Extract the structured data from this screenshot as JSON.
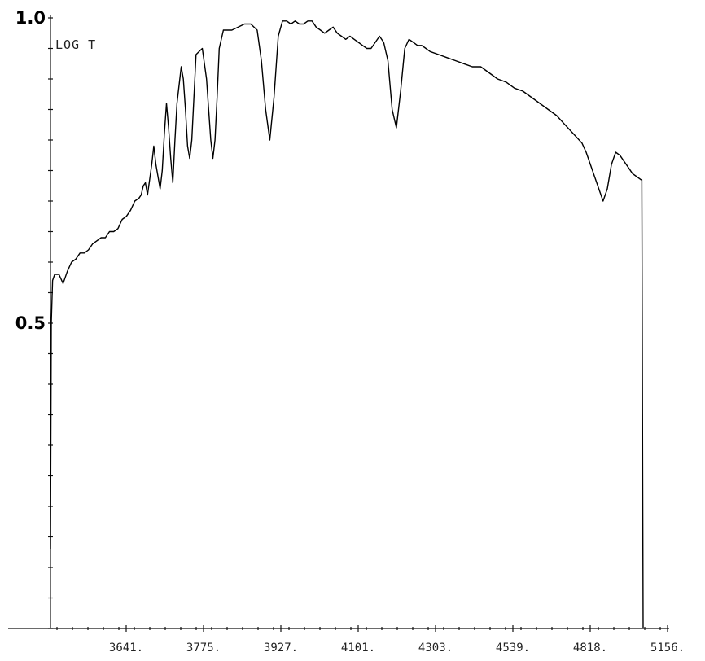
{
  "chart_data": {
    "type": "line",
    "title": "",
    "ylabel": "LOG T",
    "xlabel": "",
    "xlim": [
      3500,
      5156
    ],
    "ylim": [
      0.0,
      1.0
    ],
    "y_major_ticks": [
      {
        "value": 1.0,
        "label": "1.0"
      },
      {
        "value": 0.5,
        "label": "0.5"
      }
    ],
    "x_ticks": [
      {
        "value": 3641,
        "label": "3641."
      },
      {
        "value": 3775,
        "label": "3775."
      },
      {
        "value": 3927,
        "label": "3927."
      },
      {
        "value": 4101,
        "label": "4101."
      },
      {
        "value": 4303,
        "label": "4303."
      },
      {
        "value": 4539,
        "label": "4539."
      },
      {
        "value": 4818,
        "label": "4818."
      },
      {
        "value": 5156,
        "label": "5156."
      }
    ],
    "grid": false,
    "series": [
      {
        "x": [
          3500,
          3502,
          3505,
          3510,
          3520,
          3530,
          3540,
          3550,
          3560,
          3570,
          3580,
          3590,
          3600,
          3610,
          3620,
          3630,
          3640,
          3650,
          3660,
          3670,
          3680,
          3690,
          3700,
          3710,
          3715,
          3720,
          3725,
          3730,
          3735,
          3740,
          3745,
          3750,
          3755,
          3760,
          3765,
          3770,
          3775,
          3780,
          3785,
          3790,
          3795,
          3800,
          3810,
          3815,
          3820,
          3825,
          3830,
          3835,
          3845,
          3860,
          3870,
          3880,
          3885,
          3890,
          3895,
          3900,
          3910,
          3930,
          3945,
          3960,
          3975,
          3990,
          4000,
          4010,
          4020,
          4030,
          4040,
          4050,
          4060,
          4070,
          4080,
          4090,
          4100,
          4110,
          4120,
          4130,
          4140,
          4150,
          4160,
          4170,
          4180,
          4190,
          4200,
          4210,
          4220,
          4230,
          4240,
          4250,
          4260,
          4270,
          4280,
          4290,
          4300,
          4310,
          4320,
          4330,
          4340,
          4350,
          4360,
          4370,
          4380,
          4390,
          4400,
          4420,
          4440,
          4460,
          4480,
          4500,
          4520,
          4540,
          4560,
          4580,
          4600,
          4620,
          4640,
          4660,
          4680,
          4700,
          4720,
          4740,
          4760,
          4770,
          4780,
          4790,
          4800,
          4810,
          4820,
          4830,
          4840,
          4850,
          4860,
          4870,
          4880,
          4890,
          4900,
          4902,
          4905
        ],
        "y": [
          0.13,
          0.5,
          0.57,
          0.58,
          0.58,
          0.565,
          0.585,
          0.6,
          0.605,
          0.615,
          0.615,
          0.62,
          0.63,
          0.635,
          0.64,
          0.64,
          0.65,
          0.65,
          0.655,
          0.67,
          0.675,
          0.685,
          0.7,
          0.705,
          0.71,
          0.725,
          0.73,
          0.71,
          0.735,
          0.76,
          0.79,
          0.76,
          0.74,
          0.72,
          0.75,
          0.81,
          0.86,
          0.82,
          0.77,
          0.73,
          0.8,
          0.86,
          0.92,
          0.9,
          0.85,
          0.79,
          0.77,
          0.8,
          0.94,
          0.95,
          0.9,
          0.8,
          0.77,
          0.8,
          0.87,
          0.95,
          0.98,
          0.98,
          0.985,
          0.99,
          0.99,
          0.98,
          0.93,
          0.85,
          0.8,
          0.87,
          0.97,
          0.995,
          0.995,
          0.99,
          0.995,
          0.99,
          0.99,
          0.995,
          0.995,
          0.985,
          0.98,
          0.975,
          0.98,
          0.985,
          0.975,
          0.97,
          0.965,
          0.97,
          0.965,
          0.96,
          0.955,
          0.95,
          0.95,
          0.96,
          0.97,
          0.96,
          0.93,
          0.85,
          0.82,
          0.88,
          0.95,
          0.965,
          0.96,
          0.955,
          0.955,
          0.95,
          0.945,
          0.94,
          0.935,
          0.93,
          0.925,
          0.92,
          0.92,
          0.91,
          0.9,
          0.895,
          0.885,
          0.88,
          0.87,
          0.86,
          0.85,
          0.84,
          0.825,
          0.81,
          0.795,
          0.78,
          0.76,
          0.74,
          0.72,
          0.7,
          0.72,
          0.76,
          0.78,
          0.775,
          0.765,
          0.755,
          0.745,
          0.74,
          0.735,
          0.735,
          0.0
        ]
      }
    ]
  }
}
